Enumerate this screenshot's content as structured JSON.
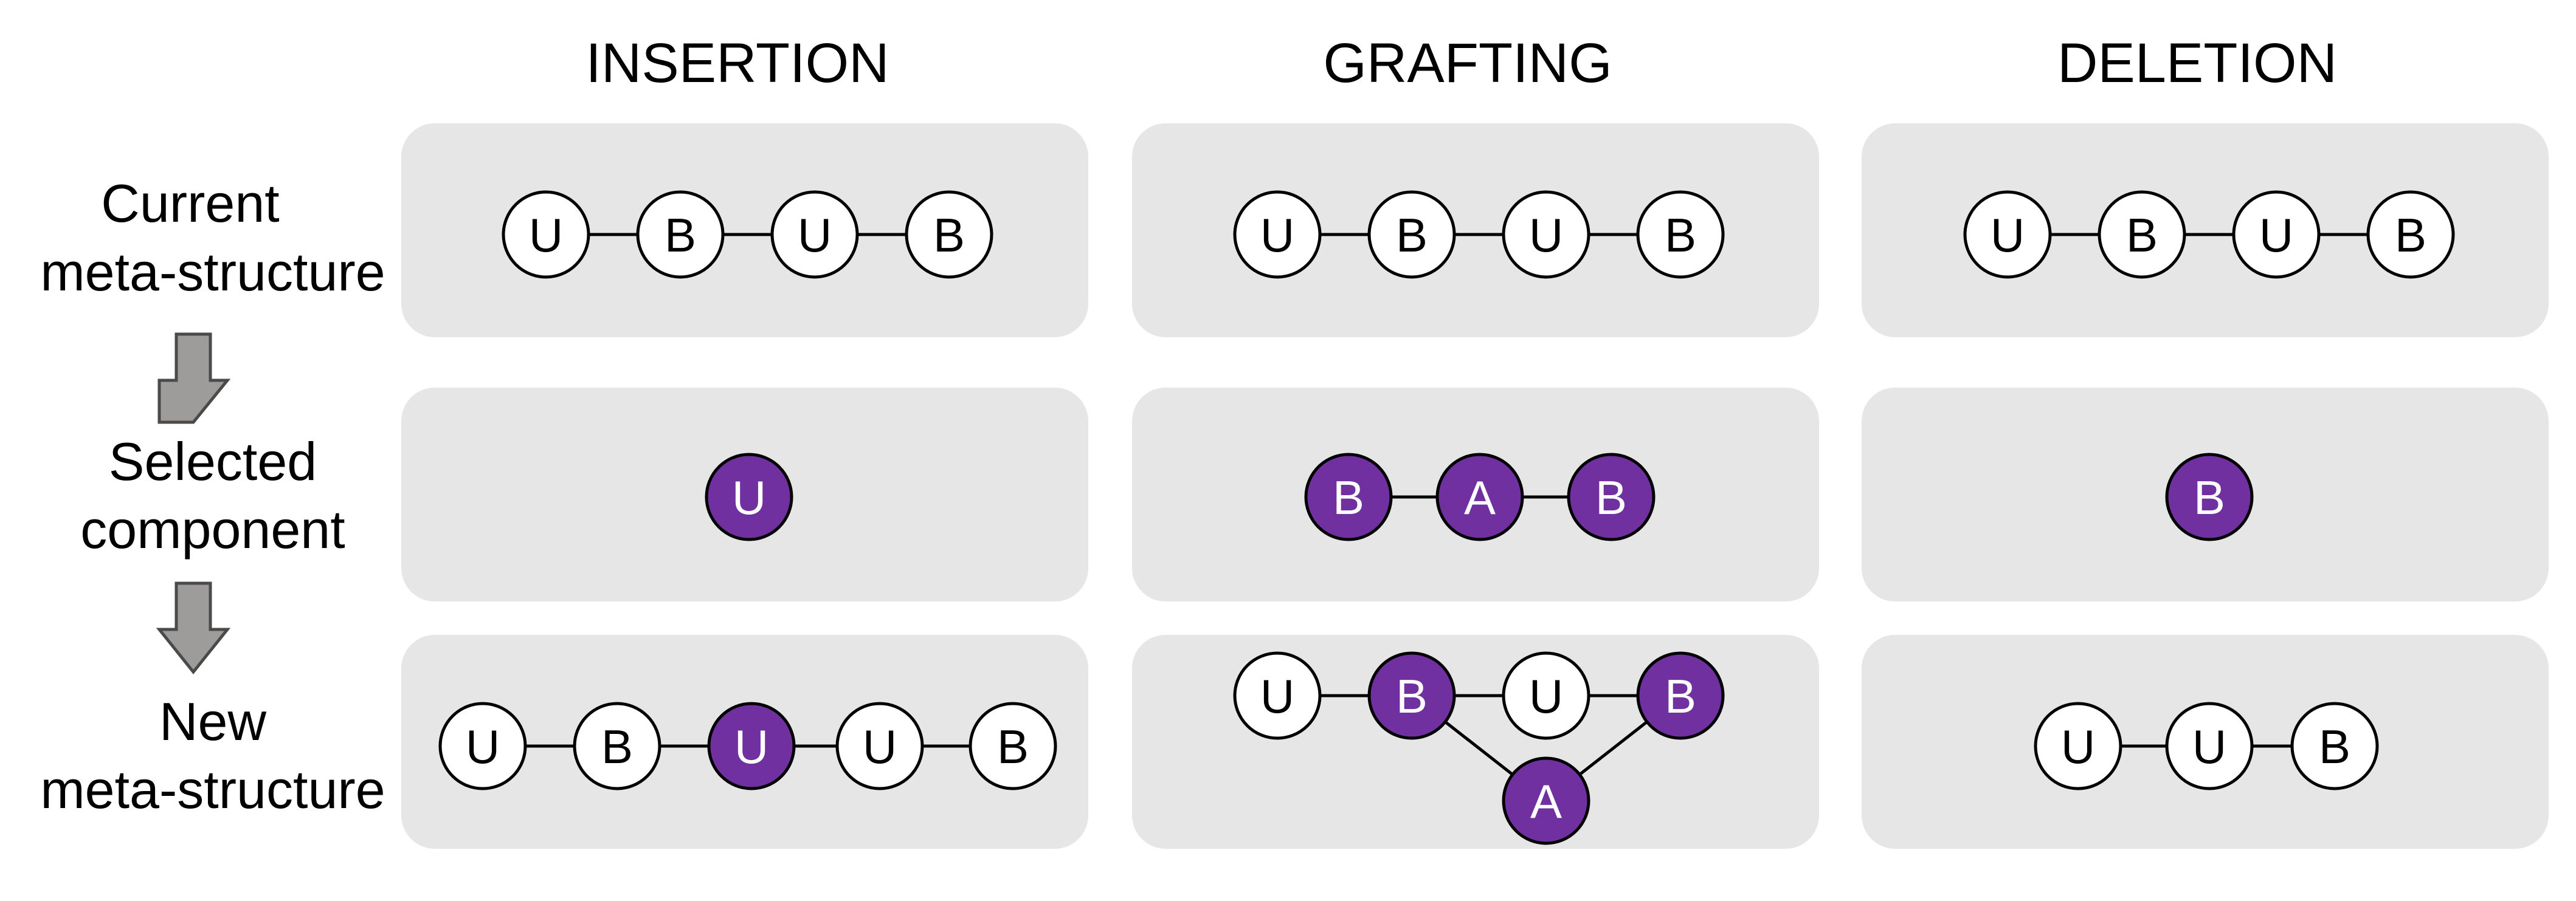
{
  "columns": [
    {
      "key": "insertion",
      "title": "INSERTION"
    },
    {
      "key": "grafting",
      "title": "GRAFTING"
    },
    {
      "key": "deletion",
      "title": "DELETION"
    }
  ],
  "rows": [
    {
      "key": "current",
      "lines": [
        "Current",
        "meta-structure"
      ]
    },
    {
      "key": "selected",
      "lines": [
        "Selected",
        "component"
      ]
    },
    {
      "key": "new",
      "lines": [
        "New",
        "meta-structure"
      ]
    }
  ],
  "colors": {
    "panel": "#e6e6e6",
    "selected_node": "#7030a0",
    "node": "#ffffff",
    "arrow_fill": "#9e9b9b"
  },
  "panels": {
    "insertion": {
      "current": {
        "nodes": [
          {
            "label": "U"
          },
          {
            "label": "B"
          },
          {
            "label": "U"
          },
          {
            "label": "B"
          }
        ]
      },
      "selected": {
        "nodes": [
          {
            "label": "U",
            "selected": true
          }
        ]
      },
      "new": {
        "nodes": [
          {
            "label": "U"
          },
          {
            "label": "B"
          },
          {
            "label": "U",
            "selected": true
          },
          {
            "label": "U"
          },
          {
            "label": "B"
          }
        ]
      }
    },
    "grafting": {
      "current": {
        "nodes": [
          {
            "label": "U"
          },
          {
            "label": "B"
          },
          {
            "label": "U"
          },
          {
            "label": "B"
          }
        ]
      },
      "selected": {
        "nodes": [
          {
            "label": "B",
            "selected": true
          },
          {
            "label": "A",
            "selected": true
          },
          {
            "label": "B",
            "selected": true
          }
        ]
      },
      "new": {
        "nodes": [
          {
            "label": "U"
          },
          {
            "label": "B",
            "selected": true
          },
          {
            "label": "U"
          },
          {
            "label": "B",
            "selected": true
          },
          {
            "label": "A",
            "selected": true
          }
        ]
      }
    },
    "deletion": {
      "current": {
        "nodes": [
          {
            "label": "U"
          },
          {
            "label": "B"
          },
          {
            "label": "U"
          },
          {
            "label": "B"
          }
        ]
      },
      "selected": {
        "nodes": [
          {
            "label": "B",
            "selected": true
          }
        ]
      },
      "new": {
        "nodes": [
          {
            "label": "U"
          },
          {
            "label": "U"
          },
          {
            "label": "B"
          }
        ]
      }
    }
  }
}
